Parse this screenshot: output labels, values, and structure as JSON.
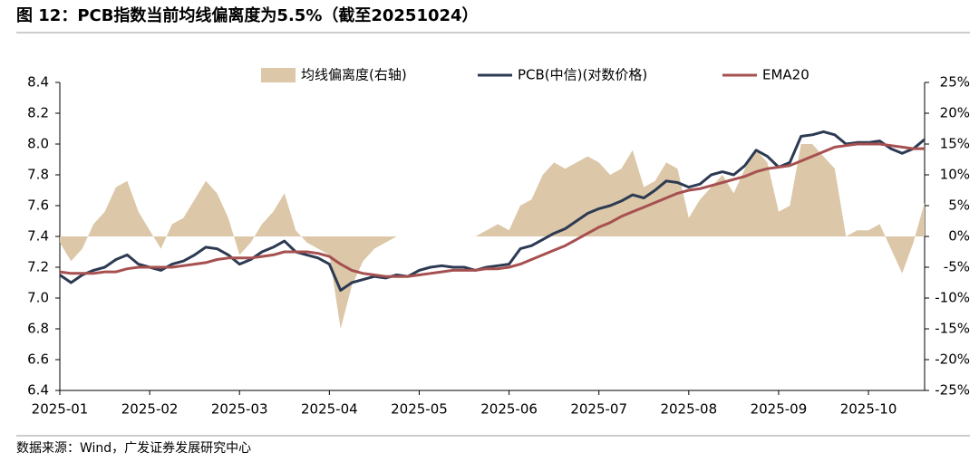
{
  "chart_data": {
    "type": "line",
    "title": "图 12：PCB指数当前均线偏离度为5.5%（截至20251024）",
    "source": "数据来源：Wind，广发证券发展研究中心",
    "categories": [
      "2025-01",
      null,
      null,
      null,
      null,
      null,
      null,
      null,
      "2025-02",
      null,
      null,
      null,
      null,
      null,
      null,
      null,
      "2025-03",
      null,
      null,
      null,
      null,
      null,
      null,
      null,
      "2025-04",
      null,
      null,
      null,
      null,
      null,
      null,
      null,
      "2025-05",
      null,
      null,
      null,
      null,
      null,
      null,
      null,
      "2025-06",
      null,
      null,
      null,
      null,
      null,
      null,
      null,
      "2025-07",
      null,
      null,
      null,
      null,
      null,
      null,
      null,
      "2025-08",
      null,
      null,
      null,
      null,
      null,
      null,
      null,
      "2025-09",
      null,
      null,
      null,
      null,
      null,
      null,
      null,
      "2025-10",
      null,
      null,
      null,
      null,
      null
    ],
    "series": [
      {
        "name": "均线偏离度(右轴)",
        "type": "area",
        "axis": "y2",
        "color": "#dcc7a8",
        "values": [
          -1,
          -4,
          -2,
          2,
          4,
          8,
          9,
          4,
          1,
          -2,
          2,
          3,
          6,
          9,
          7,
          3,
          -3,
          -1,
          2,
          4,
          7,
          1,
          -1,
          -2,
          -3,
          -15,
          -8,
          -4,
          -2,
          -1,
          0,
          0,
          0,
          0,
          0,
          0,
          0,
          0,
          1,
          2,
          1,
          5,
          6,
          10,
          12,
          11,
          12,
          13,
          12,
          10,
          11,
          14,
          8,
          9,
          12,
          11,
          3,
          6,
          8,
          10,
          7,
          11,
          14,
          12,
          4,
          5,
          15,
          15,
          13,
          11,
          0,
          1,
          1,
          2,
          -2,
          -6,
          -1,
          5.5
        ]
      },
      {
        "name": "PCB(中信)(对数价格)",
        "type": "line",
        "color": "#2c3a52",
        "values": [
          7.15,
          7.1,
          7.15,
          7.18,
          7.2,
          7.25,
          7.28,
          7.22,
          7.2,
          7.18,
          7.22,
          7.24,
          7.28,
          7.33,
          7.32,
          7.28,
          7.22,
          7.25,
          7.3,
          7.33,
          7.37,
          7.3,
          7.28,
          7.26,
          7.22,
          7.05,
          7.1,
          7.12,
          7.14,
          7.13,
          7.15,
          7.14,
          7.18,
          7.2,
          7.21,
          7.2,
          7.2,
          7.18,
          7.2,
          7.21,
          7.22,
          7.32,
          7.34,
          7.38,
          7.42,
          7.45,
          7.5,
          7.55,
          7.58,
          7.6,
          7.63,
          7.67,
          7.65,
          7.7,
          7.76,
          7.75,
          7.72,
          7.74,
          7.8,
          7.82,
          7.8,
          7.86,
          7.96,
          7.92,
          7.85,
          7.88,
          8.05,
          8.06,
          8.08,
          8.06,
          8.0,
          8.01,
          8.01,
          8.02,
          7.97,
          7.94,
          7.97,
          8.03
        ]
      },
      {
        "name": "EMA20",
        "type": "line",
        "color": "#a65050",
        "values": [
          7.17,
          7.16,
          7.16,
          7.16,
          7.17,
          7.17,
          7.19,
          7.2,
          7.2,
          7.2,
          7.2,
          7.21,
          7.22,
          7.23,
          7.25,
          7.26,
          7.26,
          7.26,
          7.27,
          7.28,
          7.3,
          7.3,
          7.3,
          7.29,
          7.27,
          7.22,
          7.18,
          7.16,
          7.15,
          7.14,
          7.14,
          7.14,
          7.15,
          7.16,
          7.17,
          7.18,
          7.18,
          7.18,
          7.19,
          7.19,
          7.2,
          7.22,
          7.25,
          7.28,
          7.31,
          7.34,
          7.38,
          7.42,
          7.46,
          7.49,
          7.53,
          7.56,
          7.59,
          7.62,
          7.65,
          7.68,
          7.7,
          7.71,
          7.73,
          7.75,
          7.77,
          7.79,
          7.82,
          7.84,
          7.85,
          7.86,
          7.89,
          7.92,
          7.95,
          7.98,
          7.99,
          8.0,
          8.0,
          8.0,
          7.99,
          7.98,
          7.97,
          7.97
        ]
      }
    ],
    "ylim": [
      6.4,
      8.4
    ],
    "yticks": [
      6.4,
      6.6,
      6.8,
      {
        "value": 7,
        "label": "7.0"
      },
      7.2,
      7.4,
      7.6,
      7.8,
      {
        "value": 8,
        "label": "8.0"
      },
      8.2,
      8.4
    ],
    "y2lim": [
      -25,
      25
    ],
    "y2ticks": [
      {
        "value": -25,
        "label": "-25%"
      },
      {
        "value": -20,
        "label": "-20%"
      },
      {
        "value": -15,
        "label": "-15%"
      },
      {
        "value": -10,
        "label": "-10%"
      },
      {
        "value": -5,
        "label": "-5%"
      },
      {
        "value": 0,
        "label": "0%"
      },
      {
        "value": 5,
        "label": "5%"
      },
      {
        "value": 10,
        "label": "10%"
      },
      {
        "value": 15,
        "label": "15%"
      },
      {
        "value": 20,
        "label": "20%"
      },
      {
        "value": 25,
        "label": "25%"
      }
    ],
    "legend": "top"
  }
}
